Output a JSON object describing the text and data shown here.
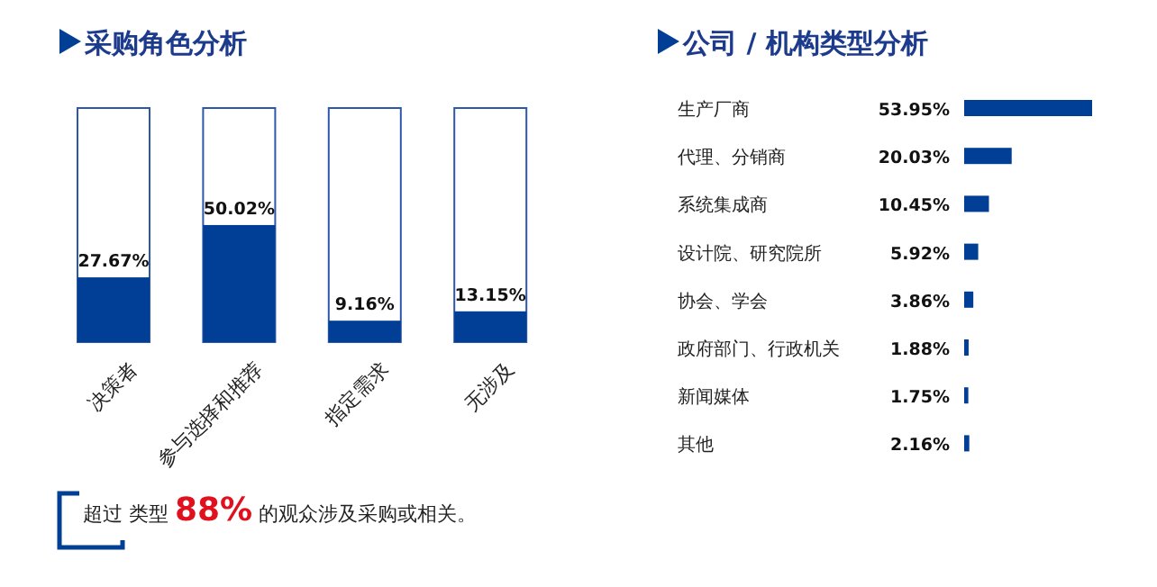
{
  "chart_data": [
    {
      "type": "bar",
      "title": "采购角色分析",
      "categories": [
        "决策者",
        "参与选择和推荐",
        "指定需求",
        "无涉及"
      ],
      "values": [
        27.67,
        50.02,
        9.16,
        13.15
      ],
      "value_labels": [
        "27.67%",
        "50.02%",
        "9.16%",
        "13.15%"
      ],
      "ylim": [
        0,
        100
      ],
      "color": "#003f95",
      "annotations": [
        "超过 类型 **88%** 的观众涉及采购或相关。"
      ]
    },
    {
      "type": "bar",
      "orientation": "horizontal",
      "title": "公司 / 机构类型分析",
      "categories": [
        "生产厂商",
        "代理、分销商",
        "系统集成商",
        "设计院、研究院所",
        "协会、学会",
        "政府部门、行政机关",
        "新闻媒体",
        "其他"
      ],
      "values": [
        53.95,
        20.03,
        10.45,
        5.92,
        3.86,
        1.88,
        1.75,
        2.16
      ],
      "value_labels": [
        "53.95%",
        "20.03%",
        "10.45%",
        "5.92%",
        "3.86%",
        "1.88%",
        "1.75%",
        "2.16%"
      ],
      "color": "#003f95"
    }
  ]
}
